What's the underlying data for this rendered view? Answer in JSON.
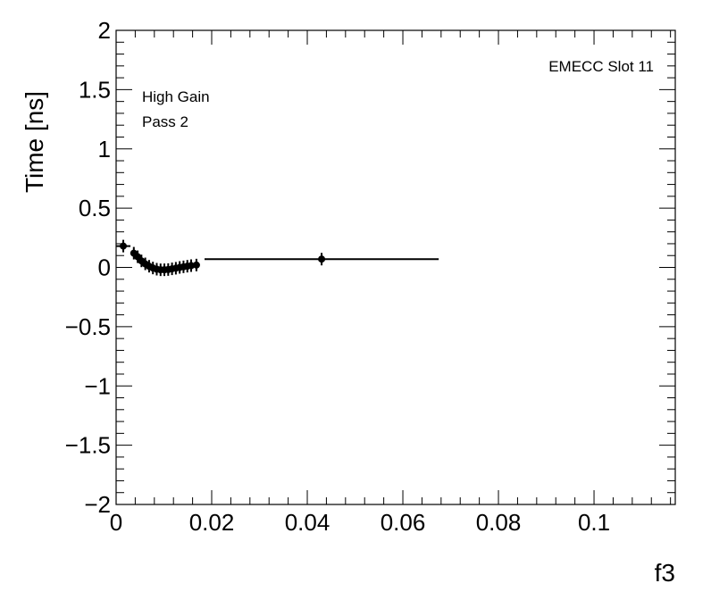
{
  "chart_data": {
    "type": "scatter",
    "title": "",
    "xlabel": "f3",
    "ylabel": "Time [ns]",
    "xlim": [
      0,
      0.117
    ],
    "ylim": [
      -2,
      2
    ],
    "grid": false,
    "legend": "none",
    "x_ticks": [
      0,
      0.02,
      0.04,
      0.06,
      0.08,
      0.1
    ],
    "x_tick_labels": [
      "0",
      "0.02",
      "0.04",
      "0.06",
      "0.08",
      "0.1"
    ],
    "y_ticks": [
      -2,
      -1.5,
      -1,
      -0.5,
      0,
      0.5,
      1,
      1.5,
      2
    ],
    "y_tick_labels": [
      "−2",
      "−1.5",
      "−1",
      "−0.5",
      "0",
      "0.5",
      "1",
      "1.5",
      "2"
    ],
    "annotations": [
      "High Gain",
      "Pass 2",
      "EMECC Slot 11"
    ],
    "marker_color": "#000000",
    "series": [
      {
        "points": [
          {
            "x": 0.0015,
            "y": 0.18,
            "xerr": 0.0015
          },
          {
            "x": 0.0037,
            "y": 0.12,
            "xerr": 0.0004
          },
          {
            "x": 0.0045,
            "y": 0.09,
            "xerr": 0.0004
          },
          {
            "x": 0.0053,
            "y": 0.055,
            "xerr": 0.0004
          },
          {
            "x": 0.0061,
            "y": 0.03,
            "xerr": 0.0004
          },
          {
            "x": 0.0069,
            "y": 0.01,
            "xerr": 0.0004
          },
          {
            "x": 0.0077,
            "y": -0.005,
            "xerr": 0.0004
          },
          {
            "x": 0.0085,
            "y": -0.015,
            "xerr": 0.0004
          },
          {
            "x": 0.0093,
            "y": -0.02,
            "xerr": 0.0004
          },
          {
            "x": 0.0101,
            "y": -0.02,
            "xerr": 0.0004
          },
          {
            "x": 0.0109,
            "y": -0.018,
            "xerr": 0.0004
          },
          {
            "x": 0.0117,
            "y": -0.012,
            "xerr": 0.0004
          },
          {
            "x": 0.0125,
            "y": -0.007,
            "xerr": 0.0004
          },
          {
            "x": 0.0133,
            "y": 0.0,
            "xerr": 0.0004
          },
          {
            "x": 0.0141,
            "y": 0.005,
            "xerr": 0.0004
          },
          {
            "x": 0.0149,
            "y": 0.01,
            "xerr": 0.0004
          },
          {
            "x": 0.0157,
            "y": 0.015,
            "xerr": 0.0004
          },
          {
            "x": 0.0168,
            "y": 0.02,
            "xerr": 0.0007
          },
          {
            "x": 0.043,
            "y": 0.07,
            "xerr": 0.0245
          }
        ]
      }
    ]
  }
}
